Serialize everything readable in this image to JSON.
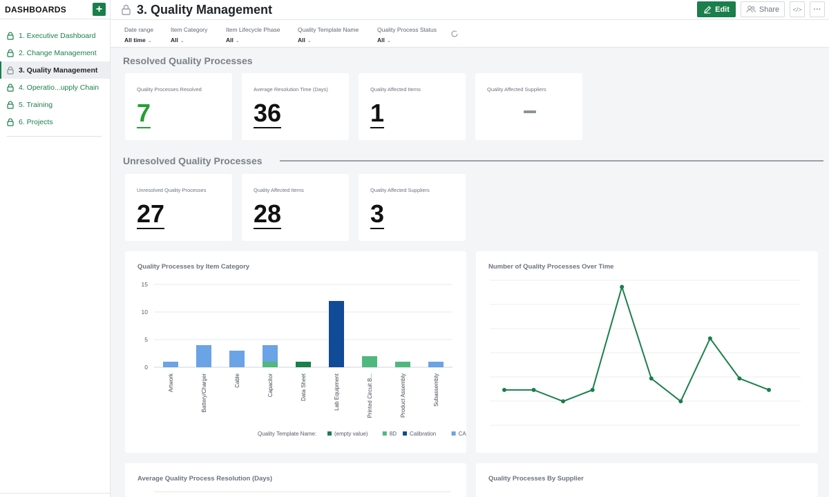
{
  "sidebar": {
    "title": "DASHBOARDS",
    "add_label": "+",
    "items": [
      {
        "label": "1. Executive Dashboard"
      },
      {
        "label": "2. Change Management"
      },
      {
        "label": "3. Quality Management"
      },
      {
        "label": "4. Operatio...upply Chain"
      },
      {
        "label": "5. Training"
      },
      {
        "label": "6. Projects"
      }
    ]
  },
  "header": {
    "title": "3. Quality Management",
    "edit_label": "Edit",
    "share_label": "Share",
    "embed_label": "</>",
    "more_label": "···"
  },
  "filters": [
    {
      "label": "Date range",
      "value": "All time"
    },
    {
      "label": "Item Category",
      "value": "All"
    },
    {
      "label": "Item Lifecycle Phase",
      "value": "All"
    },
    {
      "label": "Quality Template Name",
      "value": "All"
    },
    {
      "label": "Quality Process Status",
      "value": "All"
    }
  ],
  "resolved": {
    "title": "Resolved Quality Processes",
    "kpis": [
      {
        "label": "Quality Processes Resolved",
        "value": "7"
      },
      {
        "label": "Average Resolution Time (Days)",
        "value": "36"
      },
      {
        "label": "Quality Affected Items",
        "value": "1"
      },
      {
        "label": "Quality Affected Suppliers",
        "value": "—"
      }
    ]
  },
  "unresolved": {
    "title": "Unresolved Quality Processes",
    "kpis": [
      {
        "label": "Unresolved Quality Processes",
        "value": "27"
      },
      {
        "label": "Quality Affected Items",
        "value": "28"
      },
      {
        "label": "Quality Affected Suppliers",
        "value": "3"
      }
    ]
  },
  "colors": {
    "accent": "#1a7f4b",
    "kpi_green": "#23a033",
    "series_empty": "#1a7f4b",
    "series_8d": "#4fb87f",
    "series_calibration": "#0f4b96",
    "series_car": "#6aa3e6"
  },
  "bottom_cards": {
    "left_title": "Average Quality Process Resolution (Days)",
    "right_title": "Quality Processes By Supplier"
  },
  "chart_data": [
    {
      "type": "bar",
      "stacked": true,
      "title": "Quality Processes by Item Category",
      "categories": [
        "Artwork",
        "Battery/Charger",
        "Cable",
        "Capacitor",
        "Data Sheet",
        "Lab Equipment",
        "Printed Circuit B...",
        "Product Assembly",
        "Subassembly"
      ],
      "yticks": [
        0,
        5,
        10,
        15
      ],
      "ylim": [
        0,
        15
      ],
      "legend_title": "Quality Template Name:",
      "legend_position": "bottom-right",
      "series": [
        {
          "name": "(empty value)",
          "color": "#1a7f4b",
          "values": [
            0,
            0,
            0,
            0,
            1,
            0,
            0,
            0,
            0
          ]
        },
        {
          "name": "8D",
          "color": "#4fb87f",
          "values": [
            0,
            0,
            0,
            1,
            0,
            0,
            2,
            1,
            0
          ]
        },
        {
          "name": "Calibration",
          "color": "#0f4b96",
          "values": [
            0,
            0,
            0,
            0,
            0,
            12,
            0,
            0,
            0
          ]
        },
        {
          "name": "CAR",
          "color": "#6aa3e6",
          "values": [
            1,
            4,
            3,
            3,
            0,
            0,
            0,
            0,
            1
          ]
        }
      ]
    },
    {
      "type": "line",
      "title": "Number of Quality Processes Over Time",
      "values": [
        4,
        4,
        2,
        4,
        22,
        6,
        2,
        13,
        6,
        4
      ],
      "ylim": [
        0,
        24
      ],
      "color": "#1a7f4b"
    }
  ]
}
